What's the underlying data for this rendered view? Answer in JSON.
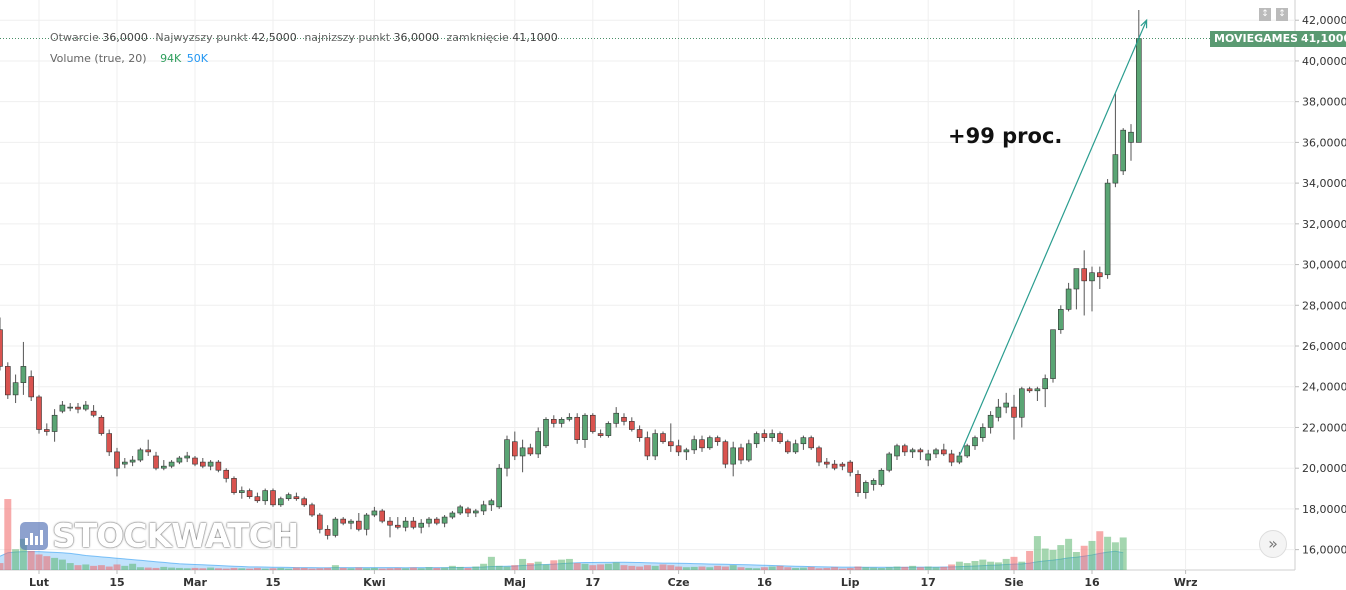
{
  "chart_data": {
    "type": "candlestick",
    "symbol": "MOVIEGAMES",
    "last_price": "41,1000",
    "legend": {
      "ohlc": [
        {
          "label": "Otwarcie",
          "value": "36,0000"
        },
        {
          "label": "Najwyzszy punkt",
          "value": "42,5000"
        },
        {
          "label": "najnizszy punkt",
          "value": "36,0000"
        },
        {
          "label": "zamknięcie",
          "value": "41,1000"
        }
      ],
      "volume_label": "Volume (true, 20)",
      "volume_value": "94K",
      "volume_ma_value": "50K"
    },
    "annotation": "+99 proc.",
    "trend_arrow": {
      "from": 20.6,
      "to": 42.0
    },
    "ylim": [
      15,
      42.6
    ],
    "y_ticks": [
      {
        "value": 16,
        "label": "16,0000"
      },
      {
        "value": 18,
        "label": "18,0000"
      },
      {
        "value": 20,
        "label": "20,0000"
      },
      {
        "value": 22,
        "label": "22,0000"
      },
      {
        "value": 24,
        "label": "24,0000"
      },
      {
        "value": 26,
        "label": "26,0000"
      },
      {
        "value": 28,
        "label": "28,0000"
      },
      {
        "value": 30,
        "label": "30,0000"
      },
      {
        "value": 32,
        "label": "32,0000"
      },
      {
        "value": 34,
        "label": "34,0000"
      },
      {
        "value": 36,
        "label": "36,0000"
      },
      {
        "value": 38,
        "label": "38,0000"
      },
      {
        "value": 40,
        "label": "40,0000"
      },
      {
        "value": 42,
        "label": "42,0000"
      }
    ],
    "x_ticks": [
      {
        "index": 5,
        "label": "Lut"
      },
      {
        "index": 15,
        "label": "15"
      },
      {
        "index": 25,
        "label": "Mar"
      },
      {
        "index": 35,
        "label": "15"
      },
      {
        "index": 48,
        "label": "Kwi"
      },
      {
        "index": 66,
        "label": "Maj"
      },
      {
        "index": 76,
        "label": "17"
      },
      {
        "index": 87,
        "label": "Cze"
      },
      {
        "index": 98,
        "label": "16"
      },
      {
        "index": 109,
        "label": "Lip"
      },
      {
        "index": 119,
        "label": "17"
      },
      {
        "index": 130,
        "label": "Sie"
      },
      {
        "index": 140,
        "label": "16"
      },
      {
        "index": 152,
        "label": "Wrz"
      }
    ],
    "candles": [
      [
        26.8,
        27.4,
        24.8,
        25.0
      ],
      [
        25.0,
        25.2,
        23.4,
        23.6
      ],
      [
        23.6,
        24.6,
        23.2,
        24.2
      ],
      [
        24.2,
        26.2,
        23.6,
        25.0
      ],
      [
        24.5,
        24.8,
        23.3,
        23.5
      ],
      [
        23.5,
        23.6,
        21.7,
        21.9
      ],
      [
        21.9,
        22.2,
        21.6,
        21.8
      ],
      [
        21.8,
        22.9,
        21.3,
        22.6
      ],
      [
        22.8,
        23.3,
        22.7,
        23.1
      ],
      [
        23.0,
        23.2,
        22.8,
        23.0
      ],
      [
        23.0,
        23.2,
        22.7,
        22.9
      ],
      [
        22.9,
        23.3,
        22.8,
        23.1
      ],
      [
        22.8,
        23.1,
        22.5,
        22.6
      ],
      [
        22.5,
        22.6,
        21.6,
        21.7
      ],
      [
        21.7,
        21.9,
        20.6,
        20.8
      ],
      [
        20.8,
        21.0,
        19.6,
        20.0
      ],
      [
        20.2,
        20.5,
        20.0,
        20.3
      ],
      [
        20.3,
        20.6,
        20.1,
        20.4
      ],
      [
        20.4,
        21.0,
        20.3,
        20.9
      ],
      [
        20.9,
        21.4,
        20.6,
        20.8
      ],
      [
        20.6,
        20.8,
        19.9,
        20.0
      ],
      [
        20.0,
        20.4,
        19.9,
        20.1
      ],
      [
        20.1,
        20.4,
        20.0,
        20.3
      ],
      [
        20.3,
        20.6,
        20.2,
        20.5
      ],
      [
        20.5,
        20.8,
        20.3,
        20.6
      ],
      [
        20.5,
        20.6,
        20.1,
        20.2
      ],
      [
        20.3,
        20.5,
        20.0,
        20.1
      ],
      [
        20.1,
        20.4,
        19.9,
        20.3
      ],
      [
        20.3,
        20.4,
        19.8,
        19.9
      ],
      [
        19.9,
        20.0,
        19.3,
        19.5
      ],
      [
        19.5,
        19.6,
        18.7,
        18.8
      ],
      [
        18.8,
        19.1,
        18.5,
        18.9
      ],
      [
        18.9,
        19.0,
        18.5,
        18.6
      ],
      [
        18.6,
        18.8,
        18.3,
        18.4
      ],
      [
        18.4,
        19.0,
        18.2,
        18.9
      ],
      [
        18.9,
        19.0,
        18.1,
        18.2
      ],
      [
        18.2,
        18.6,
        18.1,
        18.5
      ],
      [
        18.5,
        18.8,
        18.4,
        18.7
      ],
      [
        18.6,
        18.8,
        18.4,
        18.5
      ],
      [
        18.5,
        18.6,
        18.1,
        18.2
      ],
      [
        18.2,
        18.3,
        17.6,
        17.7
      ],
      [
        17.7,
        17.8,
        16.8,
        17.0
      ],
      [
        17.0,
        17.2,
        16.5,
        16.7
      ],
      [
        16.7,
        17.6,
        16.6,
        17.5
      ],
      [
        17.5,
        17.6,
        17.2,
        17.3
      ],
      [
        17.3,
        17.5,
        17.0,
        17.4
      ],
      [
        17.4,
        17.8,
        16.9,
        17.0
      ],
      [
        17.0,
        17.8,
        16.7,
        17.7
      ],
      [
        17.7,
        18.1,
        17.6,
        17.9
      ],
      [
        17.9,
        18.0,
        17.3,
        17.4
      ],
      [
        17.4,
        17.6,
        16.6,
        17.2
      ],
      [
        17.2,
        17.6,
        17.0,
        17.1
      ],
      [
        17.1,
        17.6,
        16.9,
        17.4
      ],
      [
        17.4,
        17.6,
        17.0,
        17.1
      ],
      [
        17.1,
        17.5,
        16.8,
        17.3
      ],
      [
        17.3,
        17.6,
        17.1,
        17.5
      ],
      [
        17.5,
        17.6,
        17.2,
        17.3
      ],
      [
        17.3,
        17.7,
        17.1,
        17.6
      ],
      [
        17.6,
        17.9,
        17.5,
        17.8
      ],
      [
        17.8,
        18.2,
        17.7,
        18.1
      ],
      [
        18.0,
        18.1,
        17.6,
        17.8
      ],
      [
        17.8,
        18.0,
        17.6,
        17.9
      ],
      [
        17.9,
        18.4,
        17.7,
        18.2
      ],
      [
        18.2,
        18.5,
        17.9,
        18.4
      ],
      [
        18.1,
        20.2,
        18.0,
        20.0
      ],
      [
        20.0,
        21.6,
        19.6,
        21.4
      ],
      [
        21.3,
        21.8,
        20.4,
        20.6
      ],
      [
        20.6,
        21.4,
        19.8,
        21.0
      ],
      [
        21.0,
        21.2,
        20.6,
        20.7
      ],
      [
        20.7,
        22.0,
        20.5,
        21.8
      ],
      [
        21.1,
        22.5,
        21.0,
        22.4
      ],
      [
        22.4,
        22.6,
        22.0,
        22.2
      ],
      [
        22.2,
        22.5,
        22.0,
        22.4
      ],
      [
        22.4,
        22.7,
        22.3,
        22.5
      ],
      [
        22.5,
        22.7,
        21.2,
        21.4
      ],
      [
        21.4,
        22.7,
        21.0,
        22.6
      ],
      [
        22.6,
        22.7,
        21.7,
        21.8
      ],
      [
        21.7,
        21.9,
        21.5,
        21.6
      ],
      [
        21.6,
        22.3,
        21.5,
        22.2
      ],
      [
        22.2,
        23.0,
        22.0,
        22.7
      ],
      [
        22.5,
        22.7,
        22.1,
        22.3
      ],
      [
        22.3,
        22.5,
        21.8,
        21.9
      ],
      [
        21.9,
        22.1,
        21.3,
        21.5
      ],
      [
        21.5,
        21.8,
        20.4,
        20.6
      ],
      [
        20.6,
        21.9,
        20.4,
        21.7
      ],
      [
        21.7,
        21.8,
        21.2,
        21.3
      ],
      [
        21.3,
        22.2,
        20.8,
        21.1
      ],
      [
        21.1,
        21.4,
        20.6,
        20.8
      ],
      [
        20.8,
        21.0,
        20.4,
        20.9
      ],
      [
        20.9,
        21.6,
        20.7,
        21.4
      ],
      [
        21.4,
        21.6,
        20.8,
        21.0
      ],
      [
        21.0,
        21.6,
        20.9,
        21.5
      ],
      [
        21.5,
        21.6,
        21.1,
        21.3
      ],
      [
        21.3,
        21.4,
        20.0,
        20.2
      ],
      [
        20.2,
        21.3,
        19.6,
        21.0
      ],
      [
        21.0,
        21.2,
        20.2,
        20.4
      ],
      [
        20.4,
        21.4,
        20.3,
        21.2
      ],
      [
        21.2,
        21.8,
        21.0,
        21.7
      ],
      [
        21.7,
        21.9,
        21.3,
        21.5
      ],
      [
        21.5,
        21.9,
        21.3,
        21.7
      ],
      [
        21.7,
        21.8,
        21.2,
        21.3
      ],
      [
        21.3,
        21.4,
        20.7,
        20.8
      ],
      [
        20.8,
        21.4,
        20.7,
        21.2
      ],
      [
        21.2,
        21.6,
        20.9,
        21.5
      ],
      [
        21.5,
        21.6,
        20.9,
        21.0
      ],
      [
        21.0,
        21.1,
        20.1,
        20.3
      ],
      [
        20.3,
        20.5,
        20.0,
        20.2
      ],
      [
        20.2,
        20.4,
        19.9,
        20.0
      ],
      [
        20.2,
        20.3,
        19.9,
        20.1
      ],
      [
        20.3,
        20.4,
        19.6,
        19.8
      ],
      [
        19.7,
        19.9,
        18.6,
        18.8
      ],
      [
        18.8,
        19.4,
        18.5,
        19.3
      ],
      [
        19.2,
        19.5,
        18.9,
        19.4
      ],
      [
        19.2,
        20.0,
        19.1,
        19.9
      ],
      [
        19.9,
        20.8,
        19.8,
        20.7
      ],
      [
        20.6,
        21.2,
        20.4,
        21.1
      ],
      [
        21.1,
        21.2,
        20.6,
        20.8
      ],
      [
        20.8,
        21.0,
        20.5,
        20.9
      ],
      [
        20.9,
        21.0,
        20.4,
        20.8
      ],
      [
        20.4,
        20.9,
        20.1,
        20.7
      ],
      [
        20.7,
        21.0,
        20.5,
        20.9
      ],
      [
        20.9,
        21.2,
        20.6,
        20.7
      ],
      [
        20.7,
        20.9,
        20.1,
        20.3
      ],
      [
        20.3,
        20.8,
        20.2,
        20.6
      ],
      [
        20.6,
        21.2,
        20.5,
        21.1
      ],
      [
        21.1,
        21.6,
        20.9,
        21.5
      ],
      [
        21.5,
        22.2,
        21.3,
        22.0
      ],
      [
        22.0,
        22.8,
        21.7,
        22.6
      ],
      [
        22.5,
        23.4,
        22.3,
        23.0
      ],
      [
        23.0,
        23.7,
        22.7,
        23.2
      ],
      [
        23.0,
        23.6,
        21.4,
        22.5
      ],
      [
        22.5,
        24.0,
        22.0,
        23.9
      ],
      [
        23.9,
        24.0,
        23.7,
        23.8
      ],
      [
        23.8,
        24.0,
        23.3,
        23.9
      ],
      [
        23.9,
        24.6,
        23.0,
        24.4
      ],
      [
        24.4,
        26.8,
        24.2,
        26.8
      ],
      [
        26.8,
        28.0,
        26.6,
        27.8
      ],
      [
        27.8,
        29.1,
        27.7,
        28.8
      ],
      [
        28.8,
        29.7,
        27.8,
        29.8
      ],
      [
        29.8,
        30.7,
        27.5,
        29.2
      ],
      [
        29.2,
        29.9,
        27.7,
        29.6
      ],
      [
        29.6,
        29.9,
        28.8,
        29.4
      ],
      [
        29.5,
        34.2,
        29.3,
        34.0
      ],
      [
        34.0,
        38.4,
        33.8,
        35.4
      ],
      [
        34.6,
        36.7,
        34.4,
        36.6
      ],
      [
        36.0,
        36.9,
        35.1,
        36.5
      ],
      [
        36.0,
        42.5,
        36.0,
        41.1
      ]
    ],
    "volume": {
      "ylim": [
        0,
        260000
      ],
      "values": [
        20000,
        205000,
        60000,
        90000,
        55000,
        45000,
        40000,
        35000,
        30000,
        20000,
        14000,
        16000,
        12000,
        14000,
        10000,
        16000,
        12000,
        18000,
        8000,
        7000,
        6000,
        9000,
        7000,
        6000,
        5000,
        6000,
        5000,
        7000,
        5000,
        4000,
        6000,
        5000,
        4000,
        6000,
        4000,
        5000,
        6000,
        4000,
        7000,
        6000,
        4000,
        5000,
        6000,
        14000,
        6000,
        5000,
        7000,
        5000,
        6000,
        4000,
        5000,
        6000,
        5000,
        7000,
        5000,
        8000,
        6000,
        7000,
        12000,
        9000,
        6000,
        10000,
        18000,
        38000,
        12000,
        10000,
        14000,
        32000,
        20000,
        24000,
        16000,
        28000,
        30000,
        32000,
        20000,
        18000,
        14000,
        16000,
        18000,
        22000,
        14000,
        12000,
        10000,
        14000,
        12000,
        16000,
        14000,
        10000,
        8000,
        9000,
        10000,
        8000,
        12000,
        10000,
        14000,
        8000,
        6000,
        5000,
        8000,
        10000,
        12000,
        8000,
        6000,
        7000,
        9000,
        5000,
        6000,
        8000,
        4000,
        6000,
        10000,
        8000,
        7000,
        6000,
        8000,
        10000,
        9000,
        12000,
        8000,
        10000,
        8000,
        9000,
        16000,
        24000,
        20000,
        26000,
        30000,
        24000,
        22000,
        32000,
        38000,
        24000,
        55000,
        98000,
        62000,
        58000,
        72000,
        90000,
        52000,
        70000,
        84000,
        112000,
        96000,
        80000,
        94000
      ],
      "ma": [
        40000,
        50000,
        52000,
        53000,
        53000,
        53000,
        52000,
        51000,
        50000,
        48000,
        45000,
        42000,
        40000,
        38000,
        36000,
        34000,
        32000,
        30000,
        28000,
        26000,
        24000,
        22000,
        20000,
        18000,
        17000,
        16000,
        15000,
        14000,
        13000,
        12000,
        11000,
        10000,
        9000,
        9000,
        8500,
        8000,
        8000,
        7500,
        7000,
        7000,
        6800,
        6600,
        6500,
        6800,
        6800,
        6800,
        6900,
        6900,
        6900,
        6800,
        6700,
        6700,
        6600,
        6700,
        6700,
        6800,
        6800,
        6900,
        7200,
        7400,
        7500,
        7800,
        8500,
        10000,
        10500,
        11000,
        11500,
        13000,
        14000,
        15000,
        16000,
        17000,
        18500,
        20000,
        21000,
        21500,
        21800,
        22000,
        22200,
        22400,
        22300,
        22000,
        21500,
        21000,
        20500,
        20000,
        19800,
        19400,
        19000,
        18500,
        18000,
        17500,
        17000,
        16500,
        16000,
        15500,
        15000,
        14300,
        13600,
        13000,
        12400,
        11700,
        11000,
        10300,
        9800,
        9400,
        9000,
        8700,
        8400,
        8200,
        8200,
        8100,
        8100,
        8000,
        8000,
        8100,
        8100,
        8300,
        8300,
        8400,
        8400,
        8500,
        9000,
        9800,
        10500,
        11500,
        12800,
        13800,
        14600,
        15800,
        17000,
        17700,
        20000,
        24000,
        26500,
        28600,
        31300,
        35000,
        37000,
        40000,
        43500,
        48000,
        51500,
        54000,
        50000
      ]
    }
  }
}
